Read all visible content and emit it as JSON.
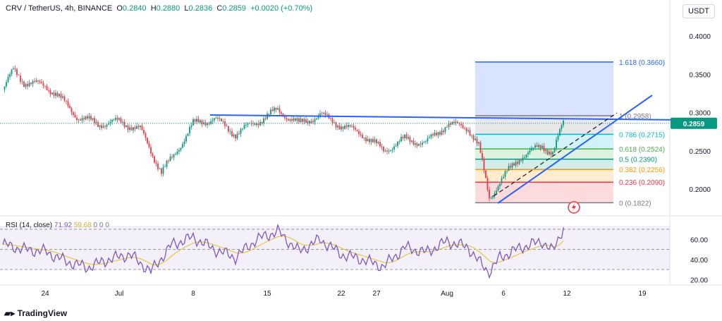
{
  "header": {
    "symbol": "CRV / TetherUS, 4h, BINANCE",
    "open_label": "O",
    "open": "0.2840",
    "high_label": "H",
    "high": "0.2880",
    "low_label": "L",
    "low": "0.2836",
    "close_label": "C",
    "close": "0.2859",
    "change": "+0.0020 (+0.70%)"
  },
  "currency_button": "USDT",
  "rsi_legend": {
    "name": "RSI (14, close)",
    "rsi": "71.92",
    "ma": "59.68",
    "z1": "0",
    "z2": "0",
    "z3": "0"
  },
  "footer": {
    "brand": "TradingView"
  },
  "colors": {
    "up": "#089981",
    "down": "#f23645",
    "trend": "#2962ff",
    "rsi": "#7e57c2",
    "rsi_ma": "#e5c841"
  },
  "chart_data": {
    "type": "candlestick",
    "price_axis": {
      "ticks": [
        "0.4000",
        "0.3500",
        "0.3000",
        "0.2500",
        "0.2000"
      ],
      "current": "0.2859",
      "range": [
        0.17,
        0.41
      ]
    },
    "x_ticks": [
      "24",
      "Jul",
      "8",
      "15",
      "22",
      "27",
      "Aug",
      "6",
      "12",
      "19"
    ],
    "close_path": [
      [
        "06-20",
        0.33
      ],
      [
        "06-21",
        0.355
      ],
      [
        "06-22",
        0.34
      ],
      [
        "06-24",
        0.335
      ],
      [
        "06-25",
        0.325
      ],
      [
        "06-27",
        0.295
      ],
      [
        "06-29",
        0.285
      ],
      [
        "07-01",
        0.288
      ],
      [
        "07-03",
        0.278
      ],
      [
        "07-04",
        0.25
      ],
      [
        "07-05",
        0.222
      ],
      [
        "07-06",
        0.24
      ],
      [
        "07-08",
        0.285
      ],
      [
        "07-10",
        0.292
      ],
      [
        "07-12",
        0.272
      ],
      [
        "07-14",
        0.288
      ],
      [
        "07-16",
        0.303
      ],
      [
        "07-18",
        0.285
      ],
      [
        "07-20",
        0.297
      ],
      [
        "07-22",
        0.283
      ],
      [
        "07-24",
        0.272
      ],
      [
        "07-26",
        0.25
      ],
      [
        "07-28",
        0.265
      ],
      [
        "07-30",
        0.26
      ],
      [
        "08-01",
        0.285
      ],
      [
        "08-03",
        0.28
      ],
      [
        "08-04",
        0.256
      ],
      [
        "08-05",
        0.188
      ],
      [
        "08-06",
        0.21
      ],
      [
        "08-08",
        0.243
      ],
      [
        "08-10",
        0.256
      ],
      [
        "08-11",
        0.248
      ],
      [
        "08-12",
        0.2859
      ]
    ],
    "horizontal_resistance": 0.2958,
    "fibonacci": [
      {
        "label": "1.618 (0.3660)",
        "value": 0.366
      },
      {
        "label": "1 (0.2958)",
        "value": 0.2958
      },
      {
        "label": "0.786 (0.2715)",
        "value": 0.2715
      },
      {
        "label": "0.618 (0.2524)",
        "value": 0.2524
      },
      {
        "label": "0.5 (0.2390)",
        "value": 0.239
      },
      {
        "label": "0.382 (0.2256)",
        "value": 0.2256
      },
      {
        "label": "0.236 (0.2090)",
        "value": 0.209
      },
      {
        "label": "0 (0.1822)",
        "value": 0.1822
      }
    ],
    "rsi": {
      "ticks": [
        "60.00",
        "40.00",
        "20.00"
      ],
      "bands": [
        70,
        50,
        30
      ],
      "path": [
        [
          "06-20",
          55
        ],
        [
          "06-22",
          50
        ],
        [
          "06-24",
          48
        ],
        [
          "06-26",
          38
        ],
        [
          "06-28",
          32
        ],
        [
          "06-30",
          40
        ],
        [
          "07-02",
          45
        ],
        [
          "07-04",
          28
        ],
        [
          "07-06",
          55
        ],
        [
          "07-08",
          62
        ],
        [
          "07-10",
          50
        ],
        [
          "07-12",
          42
        ],
        [
          "07-14",
          60
        ],
        [
          "07-16",
          68
        ],
        [
          "07-18",
          48
        ],
        [
          "07-20",
          60
        ],
        [
          "07-22",
          45
        ],
        [
          "07-24",
          40
        ],
        [
          "07-26",
          33
        ],
        [
          "07-28",
          52
        ],
        [
          "07-30",
          47
        ],
        [
          "08-01",
          58
        ],
        [
          "08-03",
          52
        ],
        [
          "08-04",
          38
        ],
        [
          "08-05",
          27
        ],
        [
          "08-06",
          42
        ],
        [
          "08-08",
          52
        ],
        [
          "08-10",
          58
        ],
        [
          "08-11",
          48
        ],
        [
          "08-12",
          71.92
        ]
      ]
    }
  }
}
